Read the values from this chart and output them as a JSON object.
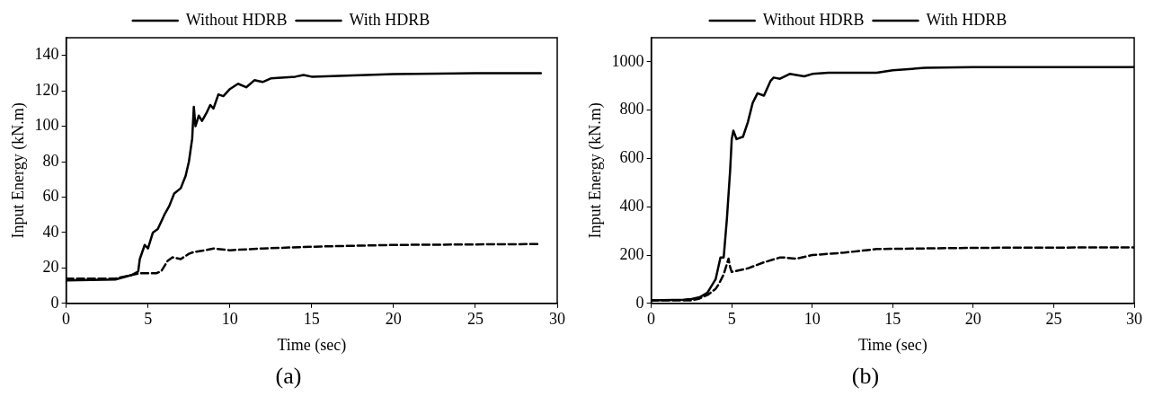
{
  "chart_data": [
    {
      "type": "line",
      "xlabel": "Time (sec)",
      "ylabel": "Input Energy (kN.m)",
      "annotations": [
        "(a)"
      ],
      "legend": "top",
      "marker": "none",
      "xlim": [
        0,
        30
      ],
      "xticks": [
        0,
        5,
        10,
        15,
        20,
        25,
        30
      ],
      "ylim": [
        0,
        150
      ],
      "yticks": [
        0,
        20,
        40,
        60,
        80,
        100,
        120,
        140
      ],
      "x": [
        0,
        3,
        4,
        4.4,
        4.5,
        4.8,
        5,
        5.3,
        5.6,
        6,
        6.3,
        6.6,
        7,
        7.3,
        7.5,
        7.7,
        7.8,
        7.9,
        8.1,
        8.3,
        8.6,
        8.8,
        9,
        9.3,
        9.6,
        10,
        10.5,
        11,
        11.5,
        12,
        12.5,
        14,
        14.5,
        15,
        20,
        25,
        29
      ],
      "series": [
        {
          "name": "Without HDRB",
          "color": "#000000",
          "line_style": "solid",
          "values": [
            13,
            13.5,
            16,
            18,
            25,
            33,
            31,
            40,
            42,
            50,
            55,
            62,
            65,
            72,
            80,
            93,
            111,
            100,
            106,
            103,
            108,
            112,
            110,
            118,
            117,
            121,
            124,
            122,
            126,
            125,
            127,
            128,
            129,
            128,
            129.5,
            130,
            130
          ]
        },
        {
          "name": "With HDRB",
          "color": "#000000",
          "line_style": "dashed",
          "x": [
            0,
            3,
            3.5,
            4,
            4.5,
            5.5,
            5.8,
            6.2,
            6.5,
            7,
            7.5,
            7.8,
            8.5,
            9,
            10,
            12,
            15,
            20,
            29
          ],
          "values": [
            14,
            14,
            15,
            16,
            17,
            17,
            18,
            24,
            26,
            25,
            28,
            29,
            30,
            31,
            30,
            31,
            32,
            33,
            33.5
          ]
        }
      ]
    },
    {
      "type": "line",
      "xlabel": "Time (sec)",
      "ylabel": "Input Energy (kN.m)",
      "annotations": [
        "(b)"
      ],
      "legend": "top",
      "marker": "none",
      "xlim": [
        0,
        30
      ],
      "xticks": [
        0,
        5,
        10,
        15,
        20,
        25,
        30
      ],
      "ylim": [
        0,
        1100
      ],
      "yticks": [
        0,
        200,
        400,
        600,
        800,
        1000
      ],
      "x": [
        0,
        2,
        2.5,
        3,
        3.5,
        4,
        4.3,
        4.5,
        4.7,
        4.9,
        5,
        5.1,
        5.3,
        5.7,
        6,
        6.3,
        6.6,
        7,
        7.4,
        7.6,
        8,
        8.6,
        9.5,
        10,
        11,
        14,
        15,
        17,
        20,
        30
      ],
      "series": [
        {
          "name": "Without HDRB",
          "color": "#000000",
          "line_style": "solid",
          "values": [
            12,
            15,
            18,
            25,
            45,
            100,
            190,
            190,
            350,
            550,
            680,
            715,
            680,
            690,
            750,
            830,
            870,
            860,
            920,
            935,
            930,
            950,
            940,
            950,
            955,
            955,
            965,
            975,
            978,
            978
          ]
        },
        {
          "name": "With HDRB",
          "color": "#000000",
          "line_style": "dashed",
          "x": [
            0,
            2,
            2.5,
            3,
            3.5,
            4,
            4.2,
            4.5,
            4.8,
            4.9,
            5,
            6,
            7,
            8,
            8.2,
            9,
            10,
            12,
            14,
            20,
            30
          ],
          "values": [
            12,
            12,
            12,
            20,
            35,
            60,
            80,
            120,
            185,
            150,
            130,
            145,
            170,
            190,
            190,
            185,
            200,
            210,
            225,
            230,
            232
          ]
        }
      ]
    }
  ]
}
